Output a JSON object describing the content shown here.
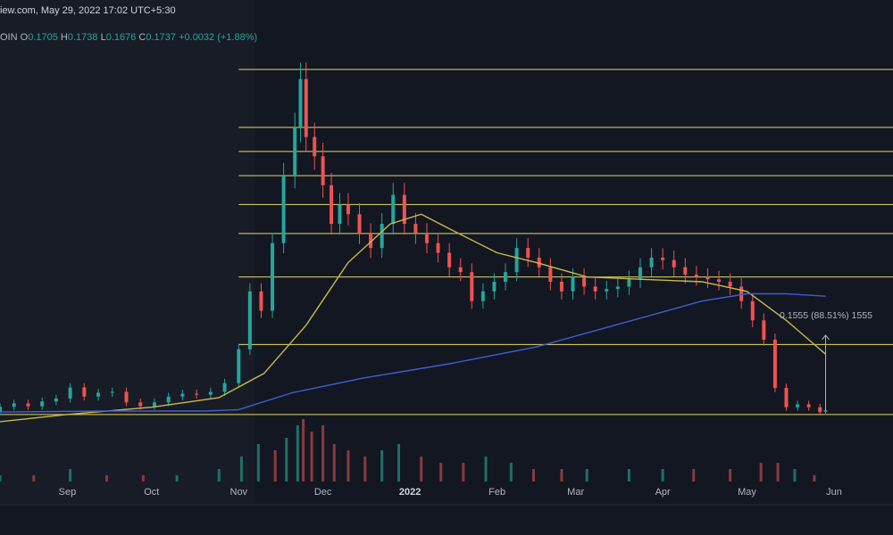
{
  "header": {
    "source_line": "iew.com, May 29, 2022 17:02 UTC+5:30",
    "symbol_suffix": "OIN",
    "ohlc": {
      "o_label": "O",
      "o_value": "0.1705",
      "h_label": "H",
      "h_value": "0.1738",
      "l_label": "L",
      "l_value": "0.1676",
      "c_label": "C",
      "c_value": "0.1737",
      "change": "+0.0032 (+1.88%)"
    }
  },
  "measure_label": "0.1555 (88.51%) 1555",
  "colors": {
    "background": "#131722",
    "up": "#26a69a",
    "down": "#ef5350",
    "up_volume": "#1f6f68",
    "down_volume": "#8a3a3d",
    "ma_fast": "#c9b84a",
    "ma_slow": "#3f5fd6",
    "fib_lines": "#e3d96a",
    "measure": "#b2b5be"
  },
  "chart_data": {
    "type": "candlestick",
    "title": "",
    "x_axis": {
      "ticks": [
        "Sep",
        "Oct",
        "Nov",
        "Dec",
        "2022",
        "Feb",
        "Mar",
        "Apr",
        "May",
        "Jun"
      ],
      "tick_dates": [
        "2021-09-01",
        "2021-10-01",
        "2021-11-01",
        "2021-12-01",
        "2022-01-01",
        "2022-02-01",
        "2022-03-01",
        "2022-04-01",
        "2022-05-01",
        "2022-06-01"
      ],
      "range": [
        "2021-08-08",
        "2022-06-22"
      ]
    },
    "y_axis": {
      "visible": false,
      "range": [
        0.1,
        0.95
      ]
    },
    "last_bar": {
      "date": "2022-05-29",
      "open": 0.1705,
      "high": 0.1738,
      "low": 0.1676,
      "close": 0.1737,
      "change": 0.0032,
      "change_pct": 1.88
    },
    "candles": [
      [
        "2021-08-08",
        0.17,
        0.181
      ],
      [
        "2021-08-13",
        0.181,
        0.188
      ],
      [
        "2021-08-18",
        0.188,
        0.182
      ],
      [
        "2021-08-23",
        0.182,
        0.192
      ],
      [
        "2021-08-28",
        0.192,
        0.198
      ],
      [
        "2021-09-02",
        0.198,
        0.221
      ],
      [
        "2021-09-07",
        0.221,
        0.202
      ],
      [
        "2021-09-12",
        0.202,
        0.21
      ],
      [
        "2021-09-17",
        0.21,
        0.212
      ],
      [
        "2021-09-22",
        0.212,
        0.19
      ],
      [
        "2021-09-27",
        0.19,
        0.182
      ],
      [
        "2021-10-02",
        0.182,
        0.19
      ],
      [
        "2021-10-07",
        0.19,
        0.202
      ],
      [
        "2021-10-12",
        0.202,
        0.208
      ],
      [
        "2021-10-17",
        0.208,
        0.206
      ],
      [
        "2021-10-22",
        0.206,
        0.212
      ],
      [
        "2021-10-27",
        0.212,
        0.23
      ],
      [
        "2021-11-01",
        0.23,
        0.3
      ],
      [
        "2021-11-05",
        0.3,
        0.42
      ],
      [
        "2021-11-09",
        0.42,
        0.38
      ],
      [
        "2021-11-13",
        0.38,
        0.52
      ],
      [
        "2021-11-17",
        0.52,
        0.66
      ],
      [
        "2021-11-21",
        0.66,
        0.76
      ],
      [
        "2021-11-23",
        0.76,
        0.86
      ],
      [
        "2021-11-25",
        0.86,
        0.74
      ],
      [
        "2021-11-28",
        0.74,
        0.7
      ],
      [
        "2021-12-01",
        0.7,
        0.64
      ],
      [
        "2021-12-04",
        0.64,
        0.56
      ],
      [
        "2021-12-07",
        0.56,
        0.6
      ],
      [
        "2021-12-10",
        0.6,
        0.58
      ],
      [
        "2021-12-14",
        0.58,
        0.54
      ],
      [
        "2021-12-18",
        0.54,
        0.51
      ],
      [
        "2021-12-22",
        0.51,
        0.56
      ],
      [
        "2021-12-26",
        0.56,
        0.62
      ],
      [
        "2021-12-30",
        0.62,
        0.56
      ],
      [
        "2022-01-03",
        0.56,
        0.54
      ],
      [
        "2022-01-07",
        0.54,
        0.52
      ],
      [
        "2022-01-11",
        0.52,
        0.5
      ],
      [
        "2022-01-15",
        0.5,
        0.47
      ],
      [
        "2022-01-19",
        0.47,
        0.46
      ],
      [
        "2022-01-23",
        0.46,
        0.4
      ],
      [
        "2022-01-27",
        0.4,
        0.42
      ],
      [
        "2022-01-31",
        0.42,
        0.44
      ],
      [
        "2022-02-04",
        0.44,
        0.46
      ],
      [
        "2022-02-08",
        0.46,
        0.51
      ],
      [
        "2022-02-12",
        0.51,
        0.49
      ],
      [
        "2022-02-16",
        0.49,
        0.47
      ],
      [
        "2022-02-20",
        0.47,
        0.44
      ],
      [
        "2022-02-24",
        0.44,
        0.42
      ],
      [
        "2022-02-28",
        0.42,
        0.45
      ],
      [
        "2022-03-04",
        0.45,
        0.43
      ],
      [
        "2022-03-08",
        0.43,
        0.42
      ],
      [
        "2022-03-12",
        0.42,
        0.425
      ],
      [
        "2022-03-16",
        0.425,
        0.43
      ],
      [
        "2022-03-20",
        0.43,
        0.445
      ],
      [
        "2022-03-24",
        0.445,
        0.47
      ],
      [
        "2022-03-28",
        0.47,
        0.49
      ],
      [
        "2022-04-01",
        0.49,
        0.485
      ],
      [
        "2022-04-05",
        0.485,
        0.47
      ],
      [
        "2022-04-09",
        0.47,
        0.455
      ],
      [
        "2022-04-13",
        0.455,
        0.45
      ],
      [
        "2022-04-17",
        0.45,
        0.445
      ],
      [
        "2022-04-21",
        0.445,
        0.44
      ],
      [
        "2022-04-25",
        0.44,
        0.43
      ],
      [
        "2022-04-29",
        0.43,
        0.4
      ],
      [
        "2022-05-03",
        0.4,
        0.36
      ],
      [
        "2022-05-07",
        0.36,
        0.32
      ],
      [
        "2022-05-11",
        0.32,
        0.22
      ],
      [
        "2022-05-15",
        0.22,
        0.18
      ],
      [
        "2022-05-19",
        0.18,
        0.186
      ],
      [
        "2022-05-23",
        0.186,
        0.18
      ],
      [
        "2022-05-27",
        0.18,
        0.17
      ],
      [
        "2022-05-29",
        0.1705,
        0.1737
      ]
    ],
    "fib_levels": [
      0.88,
      0.76,
      0.71,
      0.66,
      0.6,
      0.54,
      0.45,
      0.31,
      0.165
    ],
    "ma_fast": [
      [
        "2021-08-08",
        0.15
      ],
      [
        "2021-09-01",
        0.165
      ],
      [
        "2021-10-01",
        0.18
      ],
      [
        "2021-10-25",
        0.2
      ],
      [
        "2021-11-10",
        0.25
      ],
      [
        "2021-11-25",
        0.35
      ],
      [
        "2021-12-10",
        0.48
      ],
      [
        "2021-12-25",
        0.56
      ],
      [
        "2022-01-05",
        0.58
      ],
      [
        "2022-01-15",
        0.55
      ],
      [
        "2022-02-01",
        0.5
      ],
      [
        "2022-02-15",
        0.48
      ],
      [
        "2022-03-05",
        0.45
      ],
      [
        "2022-03-25",
        0.445
      ],
      [
        "2022-04-15",
        0.44
      ],
      [
        "2022-05-01",
        0.42
      ],
      [
        "2022-05-15",
        0.36
      ],
      [
        "2022-05-29",
        0.29
      ]
    ],
    "ma_slow": [
      [
        "2021-08-08",
        0.17
      ],
      [
        "2021-09-15",
        0.172
      ],
      [
        "2021-10-20",
        0.172
      ],
      [
        "2021-11-01",
        0.175
      ],
      [
        "2021-11-20",
        0.21
      ],
      [
        "2021-12-15",
        0.24
      ],
      [
        "2022-01-15",
        0.27
      ],
      [
        "2022-02-15",
        0.305
      ],
      [
        "2022-03-15",
        0.35
      ],
      [
        "2022-04-15",
        0.4
      ],
      [
        "2022-05-01",
        0.415
      ],
      [
        "2022-05-15",
        0.415
      ],
      [
        "2022-05-29",
        0.41
      ]
    ],
    "measure": {
      "from_date": "2022-05-29",
      "from_price": 0.1737,
      "to_price": 0.3292,
      "change": 0.1555,
      "change_pct": 88.51
    },
    "volume": [
      [
        "2021-08-08",
        1,
        1
      ],
      [
        "2021-08-20",
        1,
        0
      ],
      [
        "2021-09-02",
        2,
        1
      ],
      [
        "2021-09-15",
        1,
        0
      ],
      [
        "2021-09-28",
        1,
        0
      ],
      [
        "2021-10-10",
        1,
        1
      ],
      [
        "2021-10-25",
        2,
        1
      ],
      [
        "2021-11-02",
        4,
        1
      ],
      [
        "2021-11-08",
        6,
        1
      ],
      [
        "2021-11-14",
        5,
        0
      ],
      [
        "2021-11-18",
        7,
        1
      ],
      [
        "2021-11-22",
        9,
        1
      ],
      [
        "2021-11-24",
        10,
        0
      ],
      [
        "2021-11-27",
        8,
        0
      ],
      [
        "2021-12-01",
        9,
        0
      ],
      [
        "2021-12-05",
        6,
        0
      ],
      [
        "2021-12-10",
        5,
        0
      ],
      [
        "2021-12-16",
        4,
        0
      ],
      [
        "2021-12-22",
        5,
        1
      ],
      [
        "2021-12-28",
        6,
        1
      ],
      [
        "2022-01-05",
        4,
        0
      ],
      [
        "2022-01-12",
        3,
        0
      ],
      [
        "2022-01-20",
        3,
        0
      ],
      [
        "2022-01-28",
        4,
        1
      ],
      [
        "2022-02-06",
        3,
        1
      ],
      [
        "2022-02-14",
        2,
        0
      ],
      [
        "2022-02-24",
        2,
        0
      ],
      [
        "2022-03-05",
        2,
        1
      ],
      [
        "2022-03-20",
        2,
        1
      ],
      [
        "2022-04-01",
        2,
        1
      ],
      [
        "2022-04-12",
        2,
        0
      ],
      [
        "2022-04-25",
        2,
        0
      ],
      [
        "2022-05-06",
        3,
        0
      ],
      [
        "2022-05-12",
        3,
        0
      ],
      [
        "2022-05-18",
        2,
        1
      ],
      [
        "2022-05-25",
        1,
        0
      ]
    ]
  }
}
